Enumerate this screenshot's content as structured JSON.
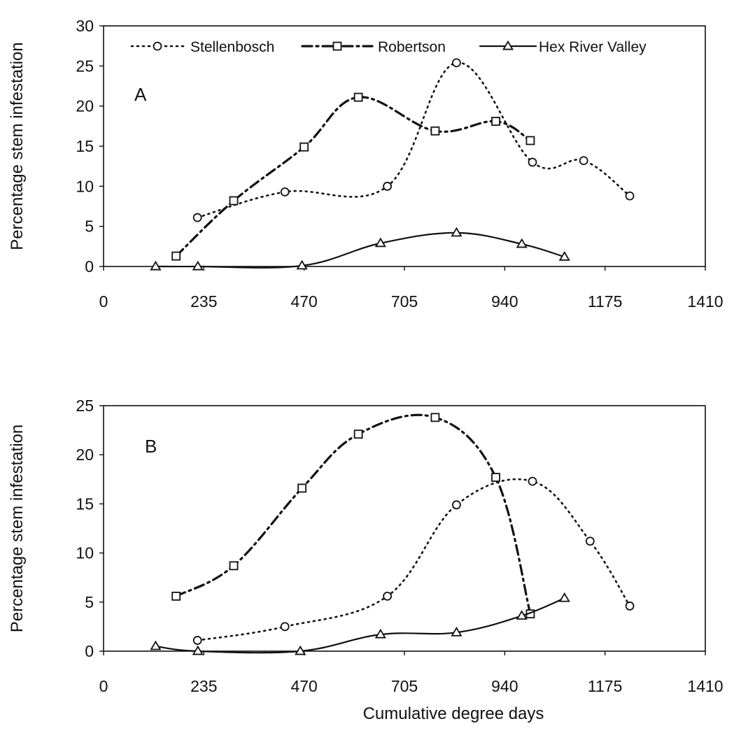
{
  "chart_data": [
    {
      "type": "line",
      "panel_label": "A",
      "title": "",
      "xlabel": "",
      "ylabel": "Percentage stem infestation",
      "xlim": [
        0,
        1410
      ],
      "ylim": [
        0,
        30
      ],
      "xticks": [
        "0",
        "235",
        "470",
        "705",
        "940",
        "1175",
        "1410"
      ],
      "yticks": [
        "0",
        "5",
        "10",
        "15",
        "20",
        "25",
        "30"
      ],
      "grid": false,
      "legend": {
        "placement": "top",
        "entries": [
          "Stellenbosch",
          "Robertson",
          "Hex River Valley"
        ]
      },
      "series": [
        {
          "name": "Stellenbosch",
          "marker": "circle",
          "style": "dotted",
          "x": [
            220,
            425,
            665,
            827,
            1005,
            1125,
            1233
          ],
          "y": [
            6.1,
            9.3,
            10.0,
            25.4,
            13.0,
            13.2,
            8.8
          ]
        },
        {
          "name": "Robertson",
          "marker": "square",
          "style": "dash-dot",
          "x": [
            170,
            305,
            470,
            597,
            777,
            919,
            1000
          ],
          "y": [
            1.3,
            8.2,
            14.9,
            21.1,
            16.9,
            18.1,
            15.7
          ]
        },
        {
          "name": "Hex River Valley",
          "marker": "triangle",
          "style": "solid",
          "x": [
            122,
            221,
            465,
            649,
            827,
            980,
            1080
          ],
          "y": [
            0,
            0,
            0.1,
            2.9,
            4.2,
            2.8,
            1.2
          ]
        }
      ]
    },
    {
      "type": "line",
      "panel_label": "B",
      "title": "",
      "xlabel": "Cumulative degree days",
      "ylabel": "Percentage stem infestation",
      "xlim": [
        0,
        1410
      ],
      "ylim": [
        0,
        25
      ],
      "xticks": [
        "0",
        "235",
        "470",
        "705",
        "940",
        "1175",
        "1410"
      ],
      "yticks": [
        "0",
        "5",
        "10",
        "15",
        "20",
        "25"
      ],
      "grid": false,
      "series": [
        {
          "name": "Stellenbosch",
          "marker": "circle",
          "style": "dotted",
          "x": [
            220,
            425,
            665,
            827,
            1005,
            1140,
            1233
          ],
          "y": [
            1.1,
            2.5,
            5.6,
            14.9,
            17.3,
            11.2,
            4.6
          ]
        },
        {
          "name": "Robertson",
          "marker": "square",
          "style": "dash-dot",
          "x": [
            170,
            305,
            465,
            597,
            777,
            919,
            1000
          ],
          "y": [
            5.6,
            8.7,
            16.6,
            22.1,
            23.8,
            17.7,
            3.8
          ]
        },
        {
          "name": "Hex River Valley",
          "marker": "triangle",
          "style": "solid",
          "x": [
            122,
            221,
            461,
            649,
            827,
            980,
            1080
          ],
          "y": [
            0.5,
            0,
            0,
            1.7,
            1.9,
            3.6,
            5.4
          ]
        }
      ]
    }
  ]
}
